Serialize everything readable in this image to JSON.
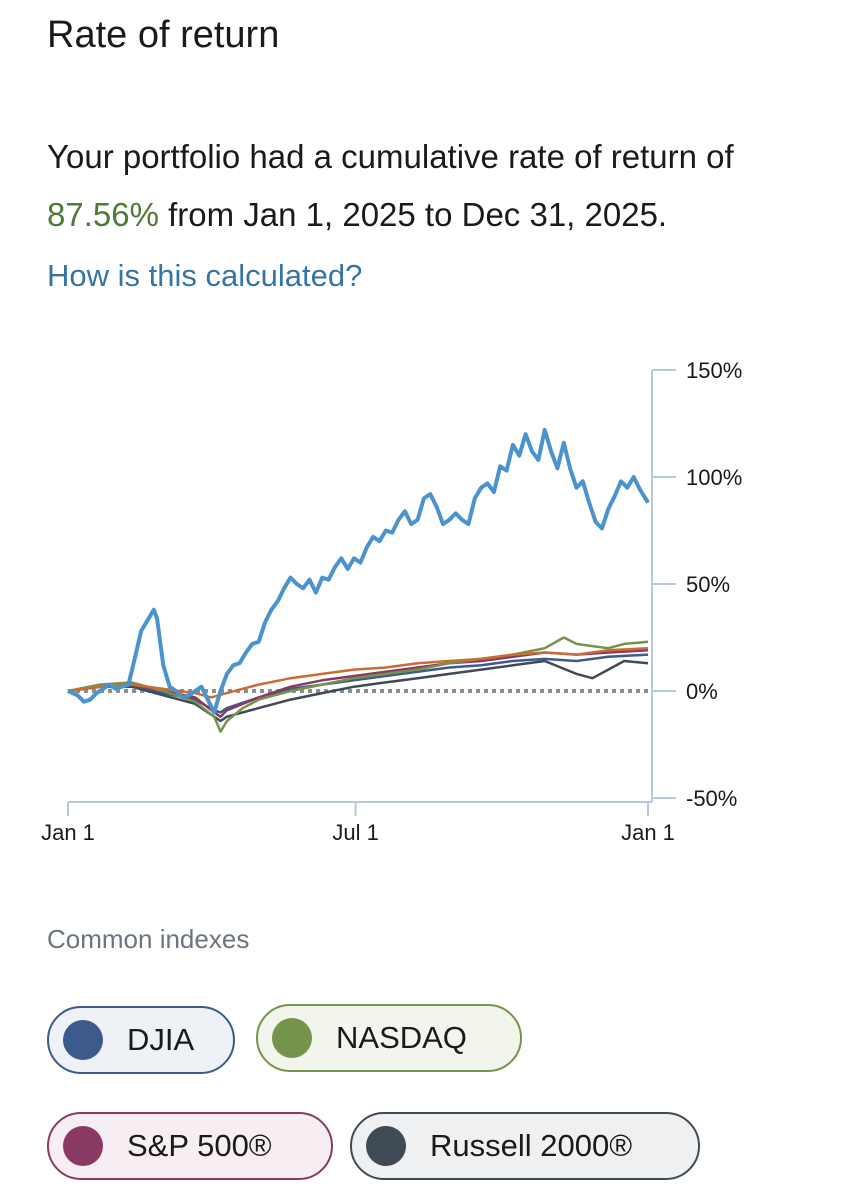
{
  "title": "Rate of return",
  "summary": {
    "prefix": "Your portfolio had a cumulative rate of return of ",
    "value": "87.56%",
    "suffix": " from Jan 1, 2025 to Dec 31, 2025."
  },
  "link_text": "How is this calculated?",
  "colors": {
    "portfolio": "#4a93cf",
    "djia": "#3d5a8c",
    "nasdaq": "#76934b",
    "sp500": "#8a3a62",
    "russell": "#404a55",
    "orange": "#c96d33",
    "accent_green": "#4f7a35",
    "link_blue": "#3575a3"
  },
  "chart_data": {
    "type": "line",
    "x_tick_labels": [
      "Jan 1",
      "Jul 1",
      "Jan 1"
    ],
    "y_tick_labels": [
      "150%",
      "100%",
      "50%",
      "0%",
      "-50%"
    ],
    "ylim": [
      -50,
      150
    ],
    "xlim": [
      0,
      365
    ],
    "baseline": 0,
    "series": [
      {
        "color": "#4a93cf",
        "points": [
          [
            0,
            0
          ],
          [
            6,
            -2
          ],
          [
            10,
            -5
          ],
          [
            14,
            -4
          ],
          [
            18,
            -1
          ],
          [
            22,
            1
          ],
          [
            26,
            3
          ],
          [
            30,
            1
          ],
          [
            34,
            2
          ],
          [
            38,
            3
          ],
          [
            42,
            15
          ],
          [
            46,
            28
          ],
          [
            50,
            33
          ],
          [
            54,
            38
          ],
          [
            56,
            34
          ],
          [
            60,
            12
          ],
          [
            64,
            2
          ],
          [
            68,
            0
          ],
          [
            72,
            -3
          ],
          [
            76,
            -2
          ],
          [
            80,
            0
          ],
          [
            84,
            2
          ],
          [
            88,
            -4
          ],
          [
            92,
            -10
          ],
          [
            96,
            0
          ],
          [
            100,
            8
          ],
          [
            104,
            12
          ],
          [
            108,
            13
          ],
          [
            112,
            18
          ],
          [
            116,
            22
          ],
          [
            120,
            23
          ],
          [
            124,
            32
          ],
          [
            128,
            38
          ],
          [
            132,
            42
          ],
          [
            136,
            48
          ],
          [
            140,
            53
          ],
          [
            144,
            50
          ],
          [
            148,
            48
          ],
          [
            152,
            52
          ],
          [
            156,
            46
          ],
          [
            160,
            53
          ],
          [
            164,
            52
          ],
          [
            168,
            58
          ],
          [
            172,
            62
          ],
          [
            176,
            57
          ],
          [
            180,
            62
          ],
          [
            184,
            60
          ],
          [
            188,
            67
          ],
          [
            192,
            72
          ],
          [
            196,
            70
          ],
          [
            200,
            75
          ],
          [
            204,
            74
          ],
          [
            208,
            80
          ],
          [
            212,
            84
          ],
          [
            216,
            78
          ],
          [
            220,
            80
          ],
          [
            224,
            90
          ],
          [
            228,
            92
          ],
          [
            232,
            86
          ],
          [
            236,
            78
          ],
          [
            240,
            80
          ],
          [
            244,
            83
          ],
          [
            248,
            80
          ],
          [
            252,
            78
          ],
          [
            256,
            90
          ],
          [
            260,
            95
          ],
          [
            264,
            97
          ],
          [
            268,
            93
          ],
          [
            272,
            105
          ],
          [
            276,
            103
          ],
          [
            280,
            115
          ],
          [
            284,
            110
          ],
          [
            288,
            120
          ],
          [
            292,
            112
          ],
          [
            296,
            108
          ],
          [
            300,
            122
          ],
          [
            304,
            112
          ],
          [
            308,
            104
          ],
          [
            312,
            116
          ],
          [
            316,
            104
          ],
          [
            320,
            95
          ],
          [
            324,
            98
          ],
          [
            328,
            88
          ],
          [
            332,
            79
          ],
          [
            336,
            76
          ],
          [
            340,
            85
          ],
          [
            344,
            91
          ],
          [
            348,
            98
          ],
          [
            352,
            95
          ],
          [
            356,
            100
          ],
          [
            360,
            94
          ],
          [
            365,
            88
          ]
        ]
      },
      {
        "color": "#c96d33",
        "points": [
          [
            0,
            0
          ],
          [
            20,
            2
          ],
          [
            40,
            3
          ],
          [
            60,
            1
          ],
          [
            80,
            -1
          ],
          [
            90,
            -3
          ],
          [
            100,
            -1
          ],
          [
            120,
            3
          ],
          [
            140,
            6
          ],
          [
            160,
            8
          ],
          [
            180,
            10
          ],
          [
            200,
            11
          ],
          [
            220,
            13
          ],
          [
            240,
            14
          ],
          [
            260,
            15
          ],
          [
            280,
            17
          ],
          [
            300,
            18
          ],
          [
            320,
            17
          ],
          [
            340,
            19
          ],
          [
            365,
            20
          ]
        ]
      },
      {
        "color": "#76934b",
        "points": [
          [
            0,
            0
          ],
          [
            20,
            3
          ],
          [
            40,
            4
          ],
          [
            60,
            0
          ],
          [
            80,
            -5
          ],
          [
            92,
            -12
          ],
          [
            96,
            -19
          ],
          [
            100,
            -14
          ],
          [
            110,
            -8
          ],
          [
            120,
            -4
          ],
          [
            140,
            0
          ],
          [
            160,
            3
          ],
          [
            180,
            6
          ],
          [
            200,
            8
          ],
          [
            220,
            10
          ],
          [
            240,
            13
          ],
          [
            260,
            15
          ],
          [
            280,
            17
          ],
          [
            300,
            20
          ],
          [
            312,
            25
          ],
          [
            320,
            22
          ],
          [
            330,
            21
          ],
          [
            340,
            20
          ],
          [
            350,
            22
          ],
          [
            365,
            23
          ]
        ]
      },
      {
        "color": "#8a3a62",
        "points": [
          [
            0,
            0
          ],
          [
            20,
            2
          ],
          [
            40,
            3
          ],
          [
            60,
            0
          ],
          [
            80,
            -3
          ],
          [
            92,
            -10
          ],
          [
            96,
            -12
          ],
          [
            100,
            -9
          ],
          [
            120,
            -3
          ],
          [
            140,
            2
          ],
          [
            160,
            5
          ],
          [
            180,
            7
          ],
          [
            200,
            9
          ],
          [
            220,
            11
          ],
          [
            240,
            13
          ],
          [
            260,
            14
          ],
          [
            280,
            16
          ],
          [
            300,
            18
          ],
          [
            320,
            17
          ],
          [
            340,
            18
          ],
          [
            365,
            19
          ]
        ]
      },
      {
        "color": "#3d5a8c",
        "points": [
          [
            0,
            0
          ],
          [
            20,
            2
          ],
          [
            40,
            3
          ],
          [
            60,
            -1
          ],
          [
            80,
            -4
          ],
          [
            92,
            -9
          ],
          [
            96,
            -10
          ],
          [
            100,
            -8
          ],
          [
            120,
            -3
          ],
          [
            140,
            1
          ],
          [
            160,
            3
          ],
          [
            180,
            5
          ],
          [
            200,
            7
          ],
          [
            220,
            9
          ],
          [
            240,
            11
          ],
          [
            260,
            12
          ],
          [
            280,
            14
          ],
          [
            300,
            15
          ],
          [
            320,
            14
          ],
          [
            340,
            16
          ],
          [
            365,
            17
          ]
        ]
      },
      {
        "color": "#404a55",
        "points": [
          [
            0,
            0
          ],
          [
            20,
            2
          ],
          [
            40,
            2
          ],
          [
            60,
            -2
          ],
          [
            80,
            -6
          ],
          [
            92,
            -12
          ],
          [
            96,
            -14
          ],
          [
            100,
            -12
          ],
          [
            120,
            -8
          ],
          [
            140,
            -4
          ],
          [
            160,
            -1
          ],
          [
            180,
            2
          ],
          [
            200,
            4
          ],
          [
            220,
            6
          ],
          [
            240,
            8
          ],
          [
            260,
            10
          ],
          [
            280,
            12
          ],
          [
            300,
            14
          ],
          [
            320,
            8
          ],
          [
            330,
            6
          ],
          [
            340,
            10
          ],
          [
            350,
            14
          ],
          [
            365,
            13
          ]
        ]
      }
    ]
  },
  "indexes": {
    "heading": "Common indexes",
    "items": [
      {
        "label": "DJIA",
        "dot": "#3d5a8c",
        "border": "#3d5a8c",
        "bg": "#eef1f6"
      },
      {
        "label": "NASDAQ",
        "dot": "#76934b",
        "border": "#76934b",
        "bg": "#f1f5ec"
      },
      {
        "label": "S&P 500®",
        "dot": "#8a3a62",
        "border": "#8a3a62",
        "bg": "#f7eef3"
      },
      {
        "label": "Russell 2000®",
        "dot": "#404a55",
        "border": "#404a55",
        "bg": "#eef0f2"
      }
    ]
  }
}
